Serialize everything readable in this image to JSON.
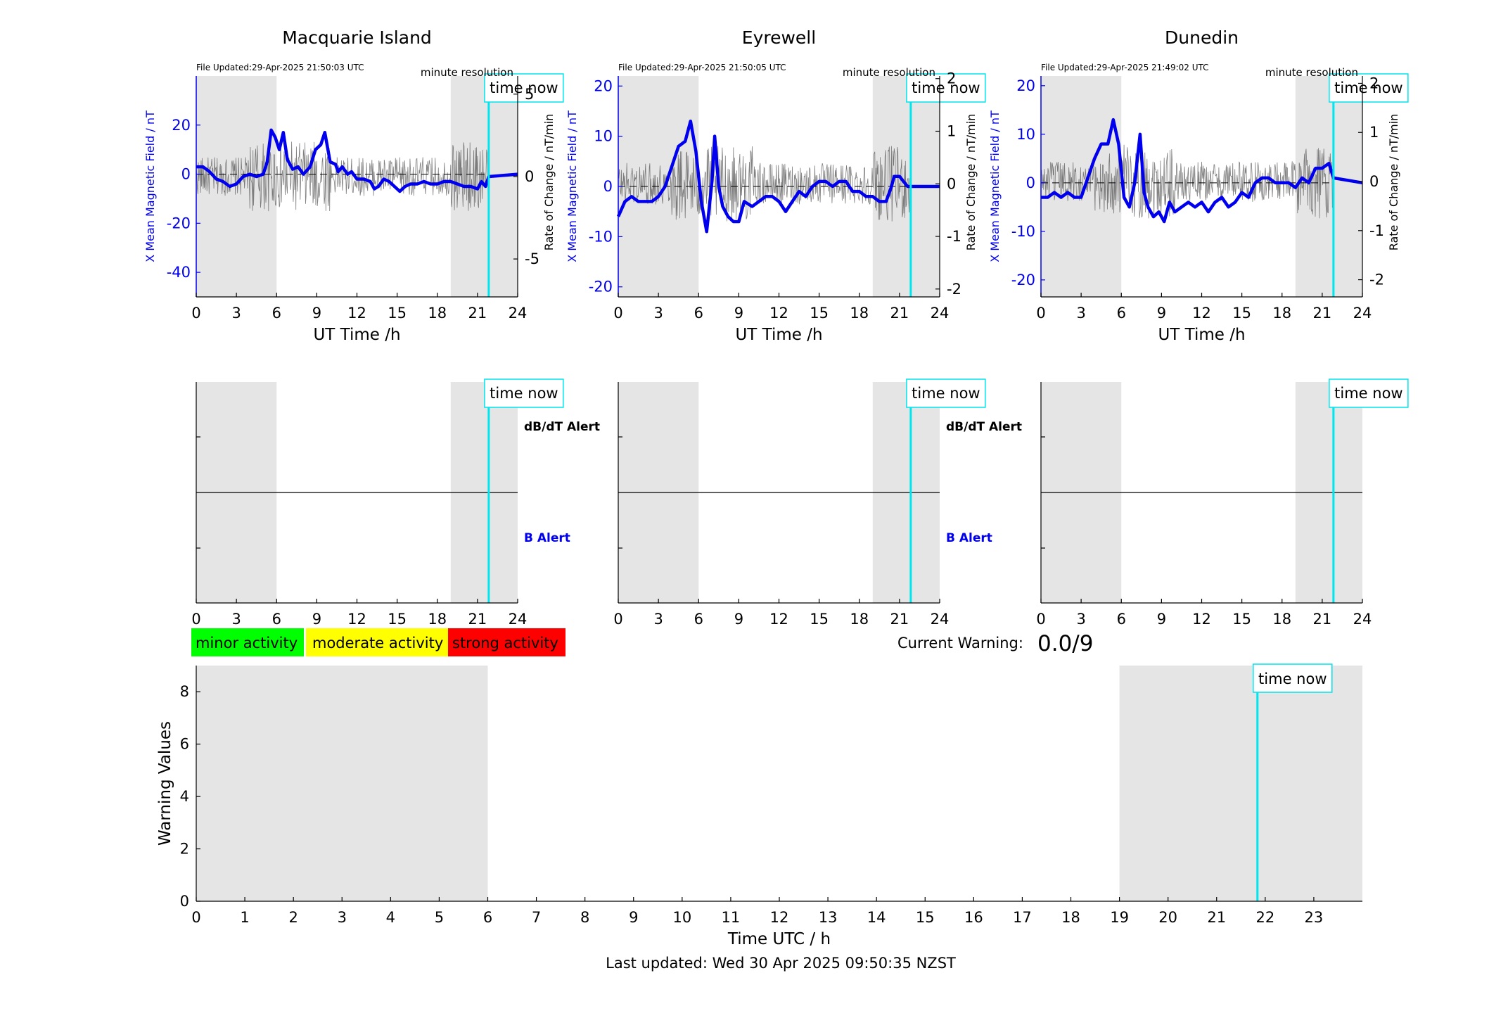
{
  "time_now_hour": 21.84,
  "day_shade_ranges": [
    [
      0,
      6
    ],
    [
      19,
      24
    ]
  ],
  "panels": [
    {
      "title": "Macquarie Island",
      "file_updated": "File Updated:29-Apr-2025 21:50:03 UTC",
      "resolution": "minute resolution",
      "time_now_label": "time now",
      "left_ylabel": "X Mean Magnetic Field / nT",
      "right_ylabel": "Rate of Change / nT/min",
      "left_ylim": [
        -50,
        40
      ],
      "left_ticks": [
        -40,
        -20,
        0,
        20
      ],
      "right_ylim": [
        -7.3,
        6.1
      ],
      "right_ticks": [
        -5,
        0,
        5
      ],
      "xlabel": "UT Time /h",
      "xticks": [
        0,
        3,
        6,
        9,
        12,
        15,
        18,
        21,
        24
      ],
      "b_series": [
        [
          0,
          3
        ],
        [
          0.5,
          3
        ],
        [
          1,
          1
        ],
        [
          1.5,
          -2
        ],
        [
          2,
          -3
        ],
        [
          2.5,
          -5
        ],
        [
          3,
          -4
        ],
        [
          3.5,
          -1
        ],
        [
          4,
          0
        ],
        [
          4.5,
          -1
        ],
        [
          5,
          0
        ],
        [
          5.3,
          5
        ],
        [
          5.6,
          18
        ],
        [
          5.9,
          15
        ],
        [
          6.2,
          10
        ],
        [
          6.5,
          17
        ],
        [
          6.8,
          6
        ],
        [
          7.2,
          2
        ],
        [
          7.6,
          3
        ],
        [
          8,
          0
        ],
        [
          8.5,
          3
        ],
        [
          8.9,
          10
        ],
        [
          9.3,
          12
        ],
        [
          9.6,
          17
        ],
        [
          10,
          5
        ],
        [
          10.4,
          4
        ],
        [
          10.6,
          1
        ],
        [
          10.9,
          3
        ],
        [
          11.3,
          0
        ],
        [
          11.6,
          1
        ],
        [
          12,
          -2
        ],
        [
          12.5,
          -2
        ],
        [
          13,
          -3
        ],
        [
          13.3,
          -6
        ],
        [
          13.6,
          -5
        ],
        [
          14,
          -2
        ],
        [
          14.4,
          -3
        ],
        [
          14.8,
          -5
        ],
        [
          15.2,
          -7
        ],
        [
          15.6,
          -5
        ],
        [
          16,
          -4
        ],
        [
          16.5,
          -4
        ],
        [
          17,
          -3
        ],
        [
          17.5,
          -4
        ],
        [
          18,
          -4
        ],
        [
          18.5,
          -3
        ],
        [
          19,
          -3
        ],
        [
          19.5,
          -4
        ],
        [
          20,
          -5
        ],
        [
          20.5,
          -5
        ],
        [
          21,
          -6
        ],
        [
          21.3,
          -3
        ],
        [
          21.6,
          -5
        ],
        [
          21.84,
          -1
        ],
        [
          24,
          0
        ]
      ],
      "alert_ylabels": {
        "dbdt": "dB/dT Alert",
        "b": "B Alert"
      }
    },
    {
      "title": "Eyrewell",
      "file_updated": "File Updated:29-Apr-2025 21:50:05 UTC",
      "resolution": "minute resolution",
      "time_now_label": "time now",
      "left_ylabel": "X Mean Magnetic Field / nT",
      "right_ylabel": "Rate of Change / nT/min",
      "left_ylim": [
        -22,
        22
      ],
      "left_ticks": [
        -20,
        -10,
        0,
        10,
        20
      ],
      "right_ylim": [
        -2.15,
        2.05
      ],
      "right_ticks": [
        -2,
        -1,
        0,
        1,
        2
      ],
      "xlabel": "UT Time /h",
      "xticks": [
        0,
        3,
        6,
        9,
        12,
        15,
        18,
        21,
        24
      ],
      "b_series": [
        [
          0,
          -6
        ],
        [
          0.5,
          -3
        ],
        [
          1,
          -2
        ],
        [
          1.5,
          -3
        ],
        [
          2,
          -3
        ],
        [
          2.5,
          -3
        ],
        [
          3,
          -2
        ],
        [
          3.5,
          0
        ],
        [
          4,
          4
        ],
        [
          4.5,
          8
        ],
        [
          5,
          9
        ],
        [
          5.4,
          13
        ],
        [
          5.8,
          7
        ],
        [
          6.2,
          -3
        ],
        [
          6.6,
          -9
        ],
        [
          7,
          1
        ],
        [
          7.2,
          10
        ],
        [
          7.5,
          0
        ],
        [
          7.8,
          -4
        ],
        [
          8.2,
          -6
        ],
        [
          8.6,
          -7
        ],
        [
          9,
          -7
        ],
        [
          9.4,
          -3
        ],
        [
          10,
          -4
        ],
        [
          10.5,
          -3
        ],
        [
          11,
          -2
        ],
        [
          11.5,
          -2
        ],
        [
          12,
          -3
        ],
        [
          12.5,
          -5
        ],
        [
          13,
          -3
        ],
        [
          13.5,
          -1
        ],
        [
          14,
          -2
        ],
        [
          14.5,
          0
        ],
        [
          15,
          1
        ],
        [
          15.5,
          1
        ],
        [
          16,
          0
        ],
        [
          16.5,
          1
        ],
        [
          17,
          1
        ],
        [
          17.5,
          -1
        ],
        [
          18,
          -1
        ],
        [
          18.5,
          -2
        ],
        [
          19,
          -2
        ],
        [
          19.5,
          -3
        ],
        [
          20,
          -3
        ],
        [
          20.4,
          0
        ],
        [
          20.6,
          2
        ],
        [
          21,
          2
        ],
        [
          21.3,
          1
        ],
        [
          21.6,
          0
        ],
        [
          24,
          0
        ]
      ],
      "alert_ylabels": {
        "dbdt": "dB/dT Alert",
        "b": "B Alert"
      }
    },
    {
      "title": "Dunedin",
      "file_updated": "File Updated:29-Apr-2025 21:49:02 UTC",
      "resolution": "minute resolution",
      "time_now_label": "time now",
      "left_ylabel": "X Mean Magnetic Field / nT",
      "right_ylabel": "Rate of Change / nT/min",
      "left_ylim": [
        -23.5,
        22
      ],
      "left_ticks": [
        -20,
        -10,
        0,
        10,
        20
      ],
      "right_ylim": [
        -2.35,
        2.15
      ],
      "right_ticks": [
        -2,
        -1,
        0,
        1,
        2
      ],
      "xlabel": "UT Time /h",
      "xticks": [
        0,
        3,
        6,
        9,
        12,
        15,
        18,
        21,
        24
      ],
      "b_series": [
        [
          0,
          -3
        ],
        [
          0.5,
          -3
        ],
        [
          1,
          -2
        ],
        [
          1.5,
          -3
        ],
        [
          2,
          -2
        ],
        [
          2.5,
          -3
        ],
        [
          3,
          -3
        ],
        [
          3.5,
          1
        ],
        [
          4,
          5
        ],
        [
          4.5,
          8
        ],
        [
          5,
          8
        ],
        [
          5.4,
          13
        ],
        [
          5.8,
          8
        ],
        [
          6.2,
          -3
        ],
        [
          6.6,
          -5
        ],
        [
          7,
          0
        ],
        [
          7.4,
          10
        ],
        [
          7.7,
          -2
        ],
        [
          8,
          -5
        ],
        [
          8.4,
          -7
        ],
        [
          8.8,
          -6
        ],
        [
          9.2,
          -8
        ],
        [
          9.6,
          -4
        ],
        [
          10,
          -6
        ],
        [
          10.5,
          -5
        ],
        [
          11,
          -4
        ],
        [
          11.5,
          -5
        ],
        [
          12,
          -4
        ],
        [
          12.5,
          -6
        ],
        [
          13,
          -4
        ],
        [
          13.5,
          -3
        ],
        [
          14,
          -5
        ],
        [
          14.5,
          -4
        ],
        [
          15,
          -2
        ],
        [
          15.5,
          -3
        ],
        [
          16,
          0
        ],
        [
          16.5,
          1
        ],
        [
          17,
          1
        ],
        [
          17.5,
          0
        ],
        [
          18,
          0
        ],
        [
          18.5,
          0
        ],
        [
          19,
          -1
        ],
        [
          19.5,
          1
        ],
        [
          20,
          0
        ],
        [
          20.5,
          3
        ],
        [
          21,
          3
        ],
        [
          21.5,
          4
        ],
        [
          21.84,
          1
        ],
        [
          24,
          0
        ]
      ],
      "alert_ylabels": {
        "dbdt": "",
        "b": ""
      }
    }
  ],
  "legend": {
    "minor": "minor activity",
    "moderate": "moderate activity",
    "strong": "strong activity",
    "minor_color": "#00ff00",
    "moderate_color": "#ffff00",
    "strong_color": "#ff0000"
  },
  "current_warning": {
    "label": "Current Warning:",
    "value": "0.0/9"
  },
  "chart_data": {
    "type": "bar",
    "xlabel": "Time UTC / h",
    "ylabel": "Warning Values",
    "x_ticks": [
      0,
      1,
      2,
      3,
      4,
      5,
      6,
      7,
      8,
      9,
      10,
      11,
      12,
      13,
      14,
      15,
      16,
      17,
      18,
      19,
      20,
      21,
      22,
      23
    ],
    "xlim": [
      0,
      24
    ],
    "ylim": [
      0,
      9
    ],
    "y_ticks": [
      0,
      2,
      4,
      6,
      8
    ],
    "values": [],
    "time_now_label": "time now",
    "colors": {
      "shade": "#e5e5e5",
      "time_now": "#00e5ee",
      "b_line": "#0000ee"
    }
  },
  "footer": "Last updated: Wed 30 Apr 2025 09:50:35 NZST"
}
